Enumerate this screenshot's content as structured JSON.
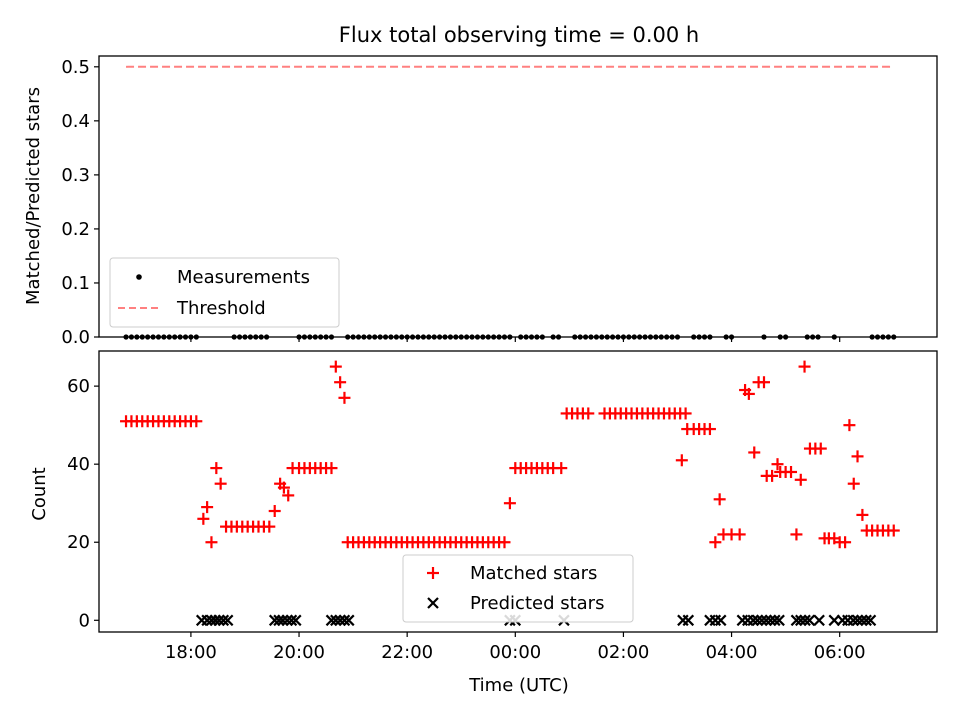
{
  "chart_data": [
    {
      "type": "scatter",
      "title": "Flux total observing time = 0.00 h",
      "xlabel": "",
      "ylabel": "Matched/Predicted stars",
      "ylim": [
        0,
        0.52
      ],
      "yticks": [
        "0.0",
        "0.1",
        "0.2",
        "0.3",
        "0.4",
        "0.5"
      ],
      "legend_position": "lower-left",
      "series": [
        {
          "name": "Measurements",
          "marker": "dot",
          "color": "#000000",
          "x_hours": [
            16.8,
            16.9,
            17.0,
            17.1,
            17.2,
            17.3,
            17.4,
            17.5,
            17.6,
            17.7,
            17.8,
            17.9,
            18.0,
            18.1,
            18.8,
            18.9,
            19.0,
            19.1,
            19.2,
            19.3,
            19.4,
            20.0,
            20.1,
            20.2,
            20.3,
            20.4,
            20.5,
            20.6,
            20.9,
            21.0,
            21.1,
            21.2,
            21.3,
            21.4,
            21.5,
            21.6,
            21.7,
            21.8,
            21.9,
            22.0,
            22.1,
            22.2,
            22.3,
            22.4,
            22.5,
            22.6,
            22.7,
            22.8,
            22.9,
            23.0,
            23.1,
            23.2,
            23.3,
            23.4,
            23.5,
            23.6,
            23.7,
            23.8,
            23.9,
            24.1,
            24.2,
            24.3,
            24.4,
            24.5,
            24.7,
            24.8,
            25.1,
            25.2,
            25.3,
            25.4,
            25.5,
            25.6,
            25.7,
            25.8,
            25.9,
            26.0,
            26.1,
            26.2,
            26.3,
            26.4,
            26.5,
            26.6,
            26.7,
            26.8,
            26.9,
            27.0,
            27.3,
            27.4,
            27.5,
            27.6,
            27.9,
            28.0,
            28.6,
            28.9,
            29.0,
            29.4,
            29.5,
            29.6,
            29.9,
            30.6,
            30.7,
            30.8,
            30.9,
            31.0
          ],
          "y": 0.0
        },
        {
          "name": "Threshold",
          "style": "dashed",
          "color": "#ff8080",
          "x_range_hours": [
            16.8,
            31.0
          ],
          "y": 0.5
        }
      ]
    },
    {
      "type": "scatter",
      "title": "",
      "xlabel": "Time (UTC)",
      "ylabel": "Count",
      "ylim": [
        -3,
        69
      ],
      "yticks": [
        "0",
        "20",
        "40",
        "60"
      ],
      "xticks": [
        "18:00",
        "20:00",
        "22:00",
        "00:00",
        "02:00",
        "04:00",
        "06:00"
      ],
      "xticks_hours": [
        18,
        20,
        22,
        24,
        26,
        28,
        30
      ],
      "xlim_hours": [
        16.3,
        31.8
      ],
      "legend_position": "lower-center",
      "series": [
        {
          "name": "Matched stars",
          "marker": "plus",
          "color": "#ff0000",
          "points": [
            [
              16.8,
              51
            ],
            [
              16.9,
              51
            ],
            [
              17.0,
              51
            ],
            [
              17.1,
              51
            ],
            [
              17.2,
              51
            ],
            [
              17.3,
              51
            ],
            [
              17.4,
              51
            ],
            [
              17.5,
              51
            ],
            [
              17.6,
              51
            ],
            [
              17.7,
              51
            ],
            [
              17.8,
              51
            ],
            [
              17.9,
              51
            ],
            [
              18.0,
              51
            ],
            [
              18.1,
              51
            ],
            [
              18.23,
              26
            ],
            [
              18.3,
              29
            ],
            [
              18.38,
              20
            ],
            [
              18.47,
              39
            ],
            [
              18.55,
              35
            ],
            [
              18.65,
              24
            ],
            [
              18.75,
              24
            ],
            [
              18.85,
              24
            ],
            [
              18.95,
              24
            ],
            [
              19.05,
              24
            ],
            [
              19.15,
              24
            ],
            [
              19.25,
              24
            ],
            [
              19.35,
              24
            ],
            [
              19.45,
              24
            ],
            [
              19.55,
              28
            ],
            [
              19.65,
              35
            ],
            [
              19.72,
              34
            ],
            [
              19.8,
              32
            ],
            [
              19.88,
              39
            ],
            [
              20.0,
              39
            ],
            [
              20.1,
              39
            ],
            [
              20.2,
              39
            ],
            [
              20.3,
              39
            ],
            [
              20.4,
              39
            ],
            [
              20.5,
              39
            ],
            [
              20.6,
              39
            ],
            [
              20.68,
              65
            ],
            [
              20.76,
              61
            ],
            [
              20.84,
              57
            ],
            [
              20.9,
              20
            ],
            [
              21.0,
              20
            ],
            [
              21.1,
              20
            ],
            [
              21.2,
              20
            ],
            [
              21.3,
              20
            ],
            [
              21.4,
              20
            ],
            [
              21.5,
              20
            ],
            [
              21.6,
              20
            ],
            [
              21.7,
              20
            ],
            [
              21.8,
              20
            ],
            [
              21.9,
              20
            ],
            [
              22.0,
              20
            ],
            [
              22.1,
              20
            ],
            [
              22.2,
              20
            ],
            [
              22.3,
              20
            ],
            [
              22.4,
              20
            ],
            [
              22.5,
              20
            ],
            [
              22.6,
              20
            ],
            [
              22.7,
              20
            ],
            [
              22.8,
              20
            ],
            [
              22.9,
              20
            ],
            [
              23.0,
              20
            ],
            [
              23.1,
              20
            ],
            [
              23.2,
              20
            ],
            [
              23.3,
              20
            ],
            [
              23.4,
              20
            ],
            [
              23.5,
              20
            ],
            [
              23.6,
              20
            ],
            [
              23.7,
              20
            ],
            [
              23.8,
              20
            ],
            [
              23.9,
              30
            ],
            [
              24.0,
              39
            ],
            [
              24.1,
              39
            ],
            [
              24.2,
              39
            ],
            [
              24.3,
              39
            ],
            [
              24.4,
              39
            ],
            [
              24.5,
              39
            ],
            [
              24.6,
              39
            ],
            [
              24.7,
              39
            ],
            [
              24.85,
              39
            ],
            [
              24.95,
              53
            ],
            [
              25.05,
              53
            ],
            [
              25.15,
              53
            ],
            [
              25.25,
              53
            ],
            [
              25.35,
              53
            ],
            [
              25.65,
              53
            ],
            [
              25.75,
              53
            ],
            [
              25.85,
              53
            ],
            [
              25.95,
              53
            ],
            [
              26.05,
              53
            ],
            [
              26.15,
              53
            ],
            [
              26.25,
              53
            ],
            [
              26.35,
              53
            ],
            [
              26.45,
              53
            ],
            [
              26.55,
              53
            ],
            [
              26.65,
              53
            ],
            [
              26.75,
              53
            ],
            [
              26.85,
              53
            ],
            [
              26.95,
              53
            ],
            [
              27.05,
              53
            ],
            [
              27.15,
              53
            ],
            [
              27.08,
              41
            ],
            [
              27.18,
              49
            ],
            [
              27.3,
              49
            ],
            [
              27.4,
              49
            ],
            [
              27.5,
              49
            ],
            [
              27.6,
              49
            ],
            [
              27.7,
              20
            ],
            [
              27.78,
              31
            ],
            [
              27.85,
              22
            ],
            [
              28.0,
              22
            ],
            [
              28.15,
              22
            ],
            [
              28.25,
              59
            ],
            [
              28.32,
              58
            ],
            [
              28.42,
              43
            ],
            [
              28.5,
              61
            ],
            [
              28.6,
              61
            ],
            [
              28.65,
              37
            ],
            [
              28.75,
              37
            ],
            [
              28.85,
              40
            ],
            [
              28.9,
              38
            ],
            [
              29.0,
              38
            ],
            [
              29.1,
              38
            ],
            [
              29.2,
              22
            ],
            [
              29.28,
              36
            ],
            [
              29.35,
              65
            ],
            [
              29.45,
              44
            ],
            [
              29.55,
              44
            ],
            [
              29.65,
              44
            ],
            [
              29.72,
              21
            ],
            [
              29.8,
              21
            ],
            [
              29.9,
              21
            ],
            [
              30.0,
              20
            ],
            [
              30.1,
              20
            ],
            [
              30.18,
              50
            ],
            [
              30.26,
              35
            ],
            [
              30.33,
              42
            ],
            [
              30.42,
              27
            ],
            [
              30.5,
              23
            ],
            [
              30.6,
              23
            ],
            [
              30.7,
              23
            ],
            [
              30.8,
              23
            ],
            [
              30.9,
              23
            ],
            [
              31.0,
              23
            ]
          ]
        },
        {
          "name": "Predicted stars",
          "marker": "x",
          "color": "#000000",
          "points": [
            [
              18.2,
              0
            ],
            [
              18.3,
              0
            ],
            [
              18.38,
              0
            ],
            [
              18.45,
              0
            ],
            [
              18.52,
              0
            ],
            [
              18.6,
              0
            ],
            [
              18.68,
              0
            ],
            [
              19.55,
              0
            ],
            [
              19.63,
              0
            ],
            [
              19.7,
              0
            ],
            [
              19.78,
              0
            ],
            [
              19.86,
              0
            ],
            [
              19.94,
              0
            ],
            [
              20.6,
              0
            ],
            [
              20.68,
              0
            ],
            [
              20.76,
              0
            ],
            [
              20.84,
              0
            ],
            [
              20.92,
              0
            ],
            [
              23.9,
              0
            ],
            [
              24.0,
              0
            ],
            [
              24.9,
              0
            ],
            [
              27.1,
              0
            ],
            [
              27.2,
              0
            ],
            [
              27.6,
              0
            ],
            [
              27.7,
              0
            ],
            [
              27.8,
              0
            ],
            [
              28.2,
              0
            ],
            [
              28.3,
              0
            ],
            [
              28.4,
              0
            ],
            [
              28.48,
              0
            ],
            [
              28.56,
              0
            ],
            [
              28.64,
              0
            ],
            [
              28.72,
              0
            ],
            [
              28.8,
              0
            ],
            [
              28.88,
              0
            ],
            [
              29.2,
              0
            ],
            [
              29.28,
              0
            ],
            [
              29.36,
              0
            ],
            [
              29.44,
              0
            ],
            [
              29.62,
              0
            ],
            [
              29.9,
              0
            ],
            [
              30.05,
              0
            ],
            [
              30.15,
              0
            ],
            [
              30.25,
              0
            ],
            [
              30.33,
              0
            ],
            [
              30.41,
              0
            ],
            [
              30.49,
              0
            ],
            [
              30.57,
              0
            ]
          ]
        }
      ]
    }
  ]
}
